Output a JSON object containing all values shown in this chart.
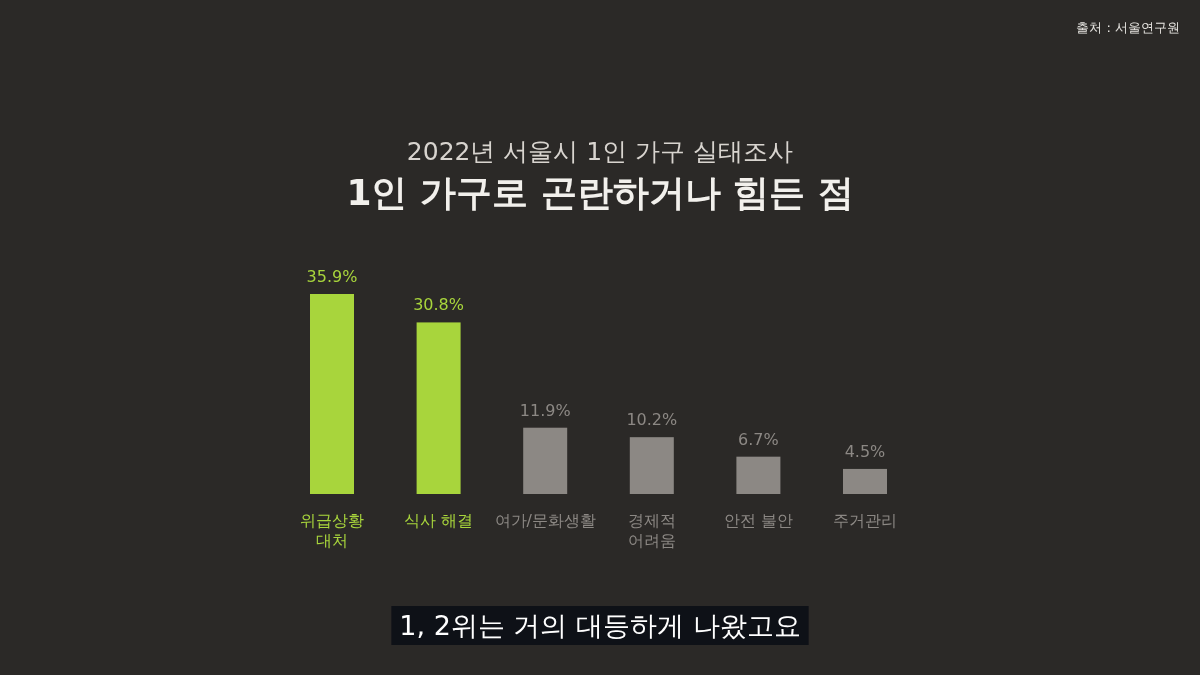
{
  "chart_data": {
    "type": "bar",
    "subtitle": "2022년 서울시 1인 가구 실태조사",
    "title": "1인 가구로 곤란하거나 힘든 점",
    "categories": [
      "위급상황\n대처",
      "식사 해결",
      "여가/문화생활",
      "경제적\n어려움",
      "안전 불안",
      "주거관리"
    ],
    "values": [
      35.9,
      30.8,
      11.9,
      10.2,
      6.7,
      4.5
    ],
    "colors": [
      "#a8d53c",
      "#a8d53c",
      "#8c8884",
      "#8c8884",
      "#8c8884",
      "#8c8884"
    ],
    "value_labels": [
      "35.9%",
      "30.8%",
      "11.9%",
      "10.2%",
      "6.7%",
      "4.5%"
    ],
    "annotations": [
      "출처 : 서울연구원",
      "1, 2위는 거의 대등하게 나왔고요"
    ]
  }
}
